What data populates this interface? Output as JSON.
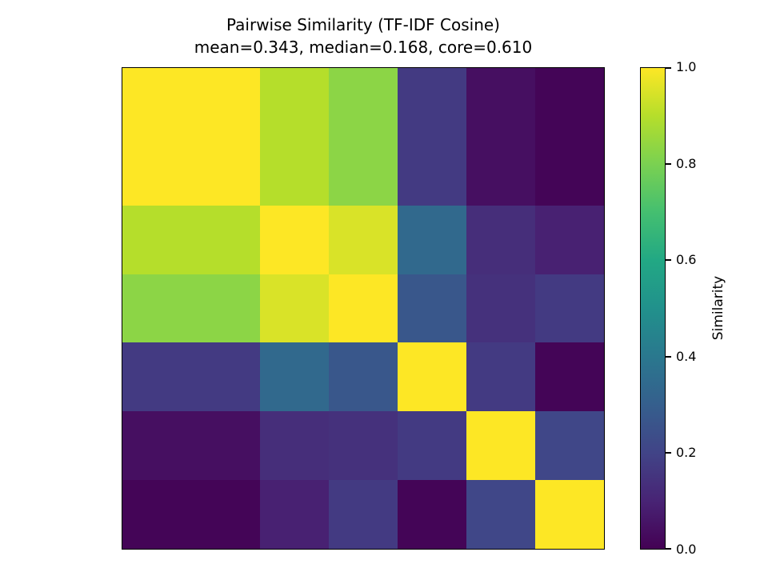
{
  "title": "Pairwise Similarity (TF-IDF Cosine)",
  "subtitle": "mean=0.343, median=0.168, core=0.610",
  "colorbar": {
    "label": "Similarity",
    "ticks": [
      "0.0",
      "0.2",
      "0.4",
      "0.6",
      "0.8",
      "1.0"
    ]
  },
  "colors": {
    "background": "#ffffff",
    "text": "#000000",
    "spine": "#000000",
    "viridis_min": "#440154",
    "viridis_max": "#fde725"
  },
  "chart_data": {
    "type": "heatmap",
    "title": "Pairwise Similarity (TF-IDF Cosine)",
    "subtitle": "mean=0.343, median=0.168, core=0.610",
    "stats": {
      "mean": 0.343,
      "median": 0.168,
      "core": 0.61
    },
    "n": 7,
    "matrix": [
      [
        1.0,
        1.0,
        0.9,
        0.83,
        0.17,
        0.04,
        0.01
      ],
      [
        1.0,
        1.0,
        0.9,
        0.83,
        0.17,
        0.04,
        0.01
      ],
      [
        0.9,
        0.9,
        1.0,
        0.95,
        0.34,
        0.13,
        0.09
      ],
      [
        0.83,
        0.83,
        0.95,
        1.0,
        0.27,
        0.14,
        0.17
      ],
      [
        0.17,
        0.17,
        0.34,
        0.27,
        1.0,
        0.17,
        0.01
      ],
      [
        0.04,
        0.04,
        0.13,
        0.14,
        0.17,
        1.0,
        0.21
      ],
      [
        0.01,
        0.01,
        0.09,
        0.17,
        0.01,
        0.21,
        1.0
      ]
    ],
    "colormap": "viridis",
    "vmin": 0.0,
    "vmax": 1.0,
    "colorbar_label": "Similarity",
    "colorbar_ticks": [
      0.0,
      0.2,
      0.4,
      0.6,
      0.8,
      1.0
    ],
    "axis_tick_labels": "none",
    "legend": "colorbar-right",
    "grid": false
  }
}
